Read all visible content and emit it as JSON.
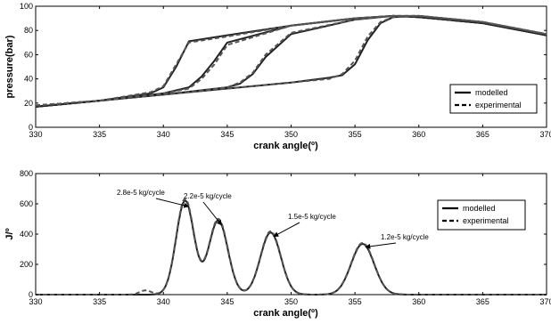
{
  "chart_data": [
    {
      "type": "line",
      "xlabel": "crank angle(º)",
      "ylabel": "pressure(bar)",
      "xlim": [
        330,
        370
      ],
      "ylim": [
        0,
        100
      ],
      "xticks": [
        330,
        335,
        340,
        345,
        350,
        355,
        360,
        365,
        370
      ],
      "yticks": [
        0,
        20,
        40,
        60,
        80,
        100
      ],
      "legend": {
        "position": "lower-right",
        "entries": [
          "modelled",
          "experimental"
        ]
      },
      "grid": false,
      "series": [
        {
          "name": "modelled",
          "style": "solid",
          "curves": [
            {
              "x": [
                330,
                335,
                339,
                340,
                341,
                342,
                345,
                350,
                355,
                358,
                360,
                365,
                370
              ],
              "y": [
                17,
                22,
                28,
                33,
                50,
                71,
                76,
                84,
                90,
                92,
                91,
                86,
                76
              ]
            },
            {
              "x": [
                330,
                335,
                340,
                342,
                343,
                344,
                345,
                350,
                355,
                358,
                360,
                365,
                370
              ],
              "y": [
                17,
                22,
                28,
                33,
                42,
                55,
                70,
                84,
                90,
                92,
                91,
                86,
                76
              ]
            },
            {
              "x": [
                330,
                335,
                340,
                345,
                346,
                347,
                348,
                350,
                355,
                358,
                360,
                365,
                370
              ],
              "y": [
                17,
                22,
                27,
                33,
                36,
                44,
                58,
                77,
                89,
                92,
                91,
                86,
                76
              ]
            },
            {
              "x": [
                330,
                335,
                340,
                345,
                350,
                353,
                354,
                355,
                356,
                357,
                358,
                360,
                365,
                370
              ],
              "y": [
                17,
                22,
                27,
                32,
                37,
                41,
                43,
                52,
                72,
                86,
                91,
                92,
                87,
                76
              ]
            }
          ]
        },
        {
          "name": "experimental",
          "style": "dashed",
          "curves": [
            {
              "x": [
                330,
                335,
                339,
                340,
                341,
                342,
                345,
                350,
                355,
                358,
                360,
                365,
                370
              ],
              "y": [
                18,
                22,
                29,
                34,
                52,
                70,
                75,
                84,
                90,
                92,
                92,
                87,
                77
              ]
            },
            {
              "x": [
                330,
                335,
                340,
                342,
                343,
                344,
                345,
                350,
                355,
                358,
                360,
                365,
                370
              ],
              "y": [
                18,
                22,
                28,
                32,
                40,
                52,
                68,
                84,
                90,
                92,
                92,
                87,
                77
              ]
            },
            {
              "x": [
                330,
                335,
                340,
                345,
                346,
                347,
                348,
                350,
                355,
                358,
                360,
                365,
                370
              ],
              "y": [
                18,
                22,
                27,
                33,
                37,
                45,
                60,
                78,
                89,
                92,
                92,
                87,
                77
              ]
            },
            {
              "x": [
                330,
                335,
                340,
                345,
                350,
                353,
                354,
                355,
                356,
                357,
                358,
                360,
                365,
                370
              ],
              "y": [
                18,
                22,
                27,
                32,
                37,
                40,
                44,
                55,
                75,
                87,
                91,
                92,
                87,
                77
              ]
            }
          ]
        }
      ]
    },
    {
      "type": "line",
      "xlabel": "crank angle(º)",
      "ylabel": "J/º",
      "xlim": [
        330,
        370
      ],
      "ylim": [
        0,
        800
      ],
      "xticks": [
        330,
        335,
        340,
        345,
        350,
        355,
        360,
        365,
        370
      ],
      "yticks": [
        0,
        200,
        400,
        600,
        800
      ],
      "legend": {
        "position": "top-right",
        "entries": [
          "modelled",
          "experimental"
        ]
      },
      "grid": false,
      "peaks": [
        {
          "center": 341.7,
          "height": 620,
          "width": 0.7,
          "label": "2.8e-5 kg/cycle"
        },
        {
          "center": 344.3,
          "height": 490,
          "width": 0.75,
          "label": "2.2e-5 kg/cycle"
        },
        {
          "center": 348.4,
          "height": 410,
          "width": 0.8,
          "label": "1.5e-5 kg/cycle"
        },
        {
          "center": 355.6,
          "height": 335,
          "width": 0.9,
          "label": "1.2e-5 kg/cycle"
        }
      ],
      "series": [
        {
          "name": "modelled",
          "style": "solid"
        },
        {
          "name": "experimental",
          "style": "dashed"
        }
      ]
    }
  ]
}
